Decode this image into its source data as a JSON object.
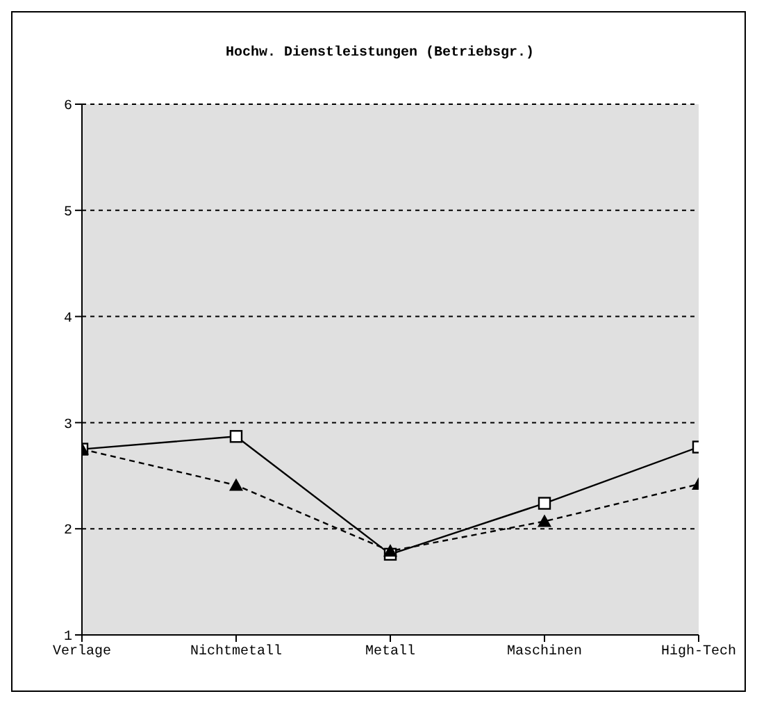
{
  "chart_data": {
    "type": "line",
    "title": "Hochw. Dienstleistungen (Betriebsgr.)",
    "categories": [
      "Verlage",
      "Nichtmetall",
      "Metall",
      "Maschinen",
      "High-Tech"
    ],
    "series": [
      {
        "color": "#000000",
        "values": [
          2.75,
          2.87,
          1.76,
          2.24,
          2.77
        ],
        "marker": "square",
        "line_style": "solid"
      },
      {
        "color": "#000000",
        "values": [
          2.75,
          2.41,
          1.79,
          2.07,
          2.42
        ],
        "marker": "triangle",
        "line_style": "dashed"
      }
    ],
    "ylim": [
      1,
      6
    ],
    "yticks": [
      1,
      2,
      3,
      4,
      5,
      6
    ],
    "grid": "y"
  }
}
